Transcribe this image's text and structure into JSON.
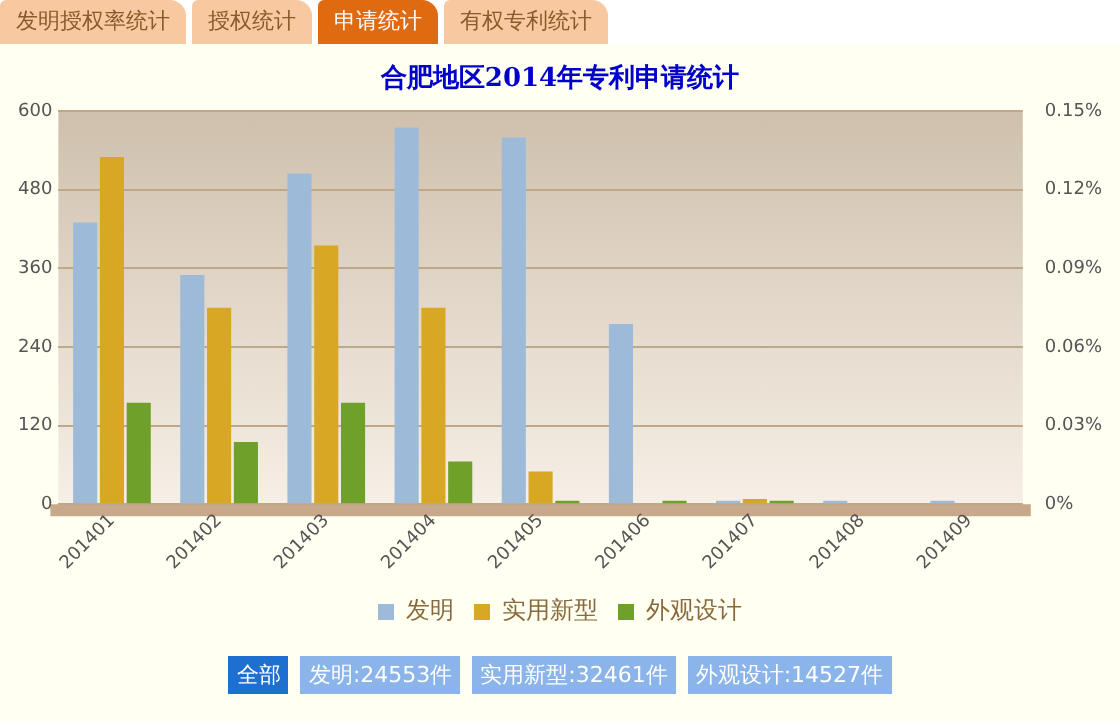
{
  "chart_data": {
    "type": "bar",
    "title": "合肥地区2014年专利申请统计",
    "categories": [
      "201401",
      "201402",
      "201403",
      "201404",
      "201405",
      "201406",
      "201407",
      "201408",
      "201409"
    ],
    "series": [
      {
        "name": "发明",
        "color": "#9dbbd9",
        "values": [
          430,
          350,
          505,
          575,
          560,
          275,
          5,
          5,
          5
        ]
      },
      {
        "name": "实用新型",
        "color": "#d8a824",
        "values": [
          530,
          300,
          395,
          300,
          50,
          0,
          8,
          0,
          0
        ]
      },
      {
        "name": "外观设计",
        "color": "#6fa02a",
        "values": [
          155,
          95,
          155,
          65,
          5,
          5,
          5,
          0,
          0
        ]
      }
    ],
    "ylim": [
      0,
      600
    ],
    "yticks": [
      0,
      120,
      240,
      360,
      480,
      600
    ],
    "y2lim": [
      0,
      0.15
    ],
    "y2ticks": [
      {
        "value": 0,
        "label": "0%"
      },
      {
        "value": 0.03,
        "label": "0.03%"
      },
      {
        "value": 0.06,
        "label": "0.06%"
      },
      {
        "value": 0.09,
        "label": "0.09%"
      },
      {
        "value": 0.12,
        "label": "0.12%"
      },
      {
        "value": 0.15,
        "label": "0.15%"
      }
    ],
    "grid": "y",
    "legend": "bottom",
    "annotations": [
      "发明授权率统计",
      "授权统计",
      "申请统计",
      "有权专利统计",
      "全部",
      "发明:24553件",
      "实用新型:32461件",
      "外观设计:14527件"
    ]
  }
}
